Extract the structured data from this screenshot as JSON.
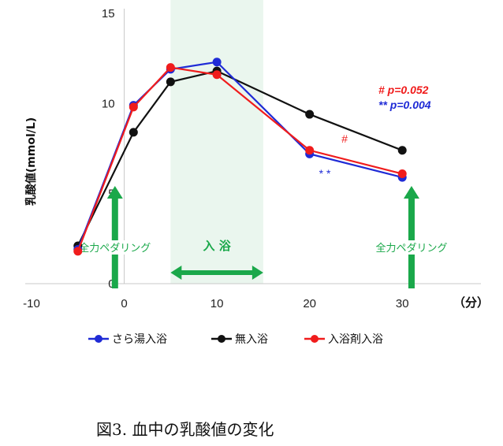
{
  "chart_data": {
    "type": "line",
    "title": "",
    "ylabel": "乳酸値(mmol/L)",
    "xunit": "（分）",
    "xlim": [
      -10,
      35
    ],
    "ylim": [
      0,
      15
    ],
    "xticks": [
      -10,
      0,
      10,
      20,
      30
    ],
    "yticks": [
      0,
      5,
      10,
      15
    ],
    "grid": false,
    "legend_position": "bottom",
    "x": [
      -5,
      1,
      5,
      10,
      20,
      30
    ],
    "series": [
      {
        "name": "さら湯入浴",
        "color": "#1f2bd6",
        "values": [
          1.9,
          9.9,
          11.9,
          12.3,
          7.2,
          5.9
        ]
      },
      {
        "name": "無入浴",
        "color": "#111111",
        "values": [
          2.1,
          8.4,
          11.2,
          11.8,
          9.4,
          7.4
        ]
      },
      {
        "name": "入浴剤入浴",
        "color": "#f01c1c",
        "values": [
          1.8,
          9.8,
          12.0,
          11.6,
          7.4,
          6.1
        ]
      }
    ],
    "shaded_interval": {
      "x": [
        5,
        15
      ],
      "label": "入 浴"
    },
    "arrows": [
      {
        "x": -1,
        "label": "全力ペダリング"
      },
      {
        "x": 31,
        "label": "全力ペダリング"
      }
    ],
    "annotations": {
      "p_red": "#  p=0.052",
      "p_blue": "** p=0.004",
      "mark_red": "#",
      "mark_blue": "* *"
    }
  },
  "caption": "図3. 血中の乳酸値の変化"
}
